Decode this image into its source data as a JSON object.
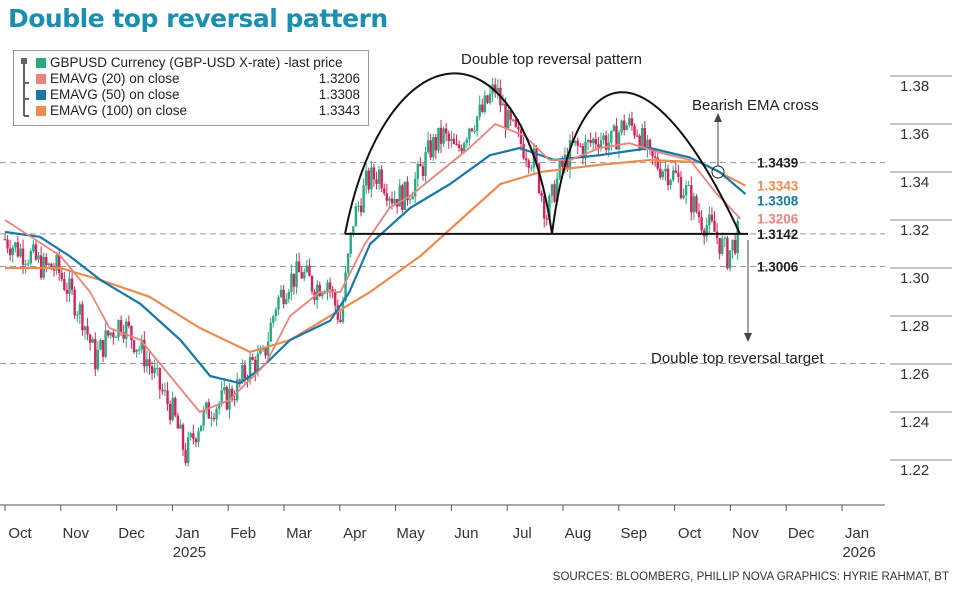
{
  "title": "Double top reversal pattern",
  "legend": [
    {
      "label": "GBPUSD Currency (GBP-USD X-rate) -last price",
      "value": "",
      "color": "#2aa882"
    },
    {
      "label": "EMAVG (20) on close",
      "value": "1.3206",
      "color": "#e8857f"
    },
    {
      "label": "EMAVG (50) on close",
      "value": "1.3308",
      "color": "#1a78a6"
    },
    {
      "label": "EMAVG (100) on close",
      "value": "1.3343",
      "color": "#ec8c50"
    }
  ],
  "source": "SOURCES: BLOOMBERG, PHILLIP NOVA    GRAPHICS: HYRIE RAHMAT, BT",
  "chart_data": {
    "type": "line",
    "title": "Double top reversal pattern",
    "ylim": [
      1.205,
      1.39
    ],
    "yticks": [
      "1.38",
      "1.36",
      "1.34",
      "1.32",
      "1.30",
      "1.28",
      "1.26",
      "1.24",
      "1.22"
    ],
    "x_months": [
      "Oct",
      "Nov",
      "Dec",
      "Jan",
      "Feb",
      "Mar",
      "Apr",
      "May",
      "Jun",
      "Jul",
      "Aug",
      "Sep",
      "Oct",
      "Nov",
      "Dec",
      "Jan"
    ],
    "x_years": [
      {
        "month_index": 3,
        "label": "2025"
      },
      {
        "month_index": 15,
        "label": "2026"
      }
    ],
    "price_weekly_close": [
      1.312,
      1.308,
      1.305,
      1.3,
      1.3,
      1.29,
      1.28,
      1.262,
      1.272,
      1.278,
      1.27,
      1.262,
      1.25,
      1.24,
      1.222,
      1.235,
      1.242,
      1.245,
      1.25,
      1.26,
      1.262,
      1.285,
      1.295,
      1.298,
      1.292,
      1.295,
      1.278,
      1.32,
      1.335,
      1.34,
      1.33,
      1.33,
      1.338,
      1.35,
      1.355,
      1.348,
      1.36,
      1.365,
      1.375,
      1.36,
      1.352,
      1.345,
      1.322,
      1.34,
      1.35,
      1.35,
      1.355,
      1.352,
      1.36,
      1.358,
      1.345,
      1.342,
      1.338,
      1.33,
      1.32,
      1.315,
      1.305,
      1.316
    ],
    "ema20": [
      [
        0,
        1.32
      ],
      [
        4.3,
        1.305
      ],
      [
        6.6,
        1.29
      ],
      [
        8.1,
        1.275
      ],
      [
        10.5,
        1.27
      ],
      [
        12.8,
        1.255
      ],
      [
        15.1,
        1.24
      ],
      [
        17.4,
        1.245
      ],
      [
        20.2,
        1.26
      ],
      [
        22.1,
        1.28
      ],
      [
        24.4,
        1.29
      ],
      [
        26,
        1.29
      ],
      [
        27.9,
        1.31
      ],
      [
        29.8,
        1.325
      ],
      [
        31.4,
        1.33
      ],
      [
        33.7,
        1.34
      ],
      [
        36,
        1.35
      ],
      [
        38,
        1.36
      ],
      [
        40.3,
        1.355
      ],
      [
        42.2,
        1.345
      ],
      [
        43.8,
        1.345
      ],
      [
        46.1,
        1.35
      ],
      [
        48.4,
        1.352
      ],
      [
        50.8,
        1.348
      ],
      [
        53.1,
        1.345
      ],
      [
        55,
        1.332
      ],
      [
        57,
        1.3206
      ]
    ],
    "ema50": [
      [
        0,
        1.315
      ],
      [
        2.7,
        1.313
      ],
      [
        5,
        1.305
      ],
      [
        7.4,
        1.295
      ],
      [
        10.5,
        1.285
      ],
      [
        13.6,
        1.27
      ],
      [
        15.9,
        1.255
      ],
      [
        18.2,
        1.252
      ],
      [
        19.8,
        1.258
      ],
      [
        22.1,
        1.27
      ],
      [
        25.2,
        1.278
      ],
      [
        26.7,
        1.29
      ],
      [
        28.3,
        1.31
      ],
      [
        31.4,
        1.325
      ],
      [
        34.5,
        1.335
      ],
      [
        37.6,
        1.347
      ],
      [
        39.9,
        1.35
      ],
      [
        42.6,
        1.345
      ],
      [
        46.1,
        1.347
      ],
      [
        50,
        1.35
      ],
      [
        53.1,
        1.346
      ],
      [
        55.4,
        1.34
      ],
      [
        57.4,
        1.3308
      ]
    ],
    "ema100": [
      [
        0,
        1.3
      ],
      [
        4.3,
        1.3
      ],
      [
        7.4,
        1.295
      ],
      [
        11.2,
        1.288
      ],
      [
        15.1,
        1.275
      ],
      [
        19,
        1.265
      ],
      [
        22.1,
        1.27
      ],
      [
        25.2,
        1.28
      ],
      [
        28.3,
        1.29
      ],
      [
        32.2,
        1.305
      ],
      [
        35.3,
        1.32
      ],
      [
        38.4,
        1.335
      ],
      [
        41.5,
        1.34
      ],
      [
        46.1,
        1.343
      ],
      [
        50,
        1.345
      ],
      [
        53.9,
        1.344
      ],
      [
        57.4,
        1.3343
      ]
    ],
    "levels": [
      {
        "value": 1.3439,
        "label": "1.3439",
        "color": "#222"
      },
      {
        "value": 1.3343,
        "label": "1.3343",
        "color": "#ec8c50"
      },
      {
        "value": 1.3308,
        "label": "1.3308",
        "color": "#1a78a6"
      },
      {
        "value": 1.3206,
        "label": "1.3206",
        "color": "#e8857f"
      },
      {
        "value": 1.3142,
        "label": "1.3142",
        "color": "#222"
      },
      {
        "value": 1.3006,
        "label": "1.3006",
        "color": "#222"
      }
    ],
    "target_level": 1.2602,
    "annotations": {
      "pattern": "Double top reversal pattern",
      "cross": "Bearish EMA cross",
      "target": "Double top reversal target"
    }
  }
}
